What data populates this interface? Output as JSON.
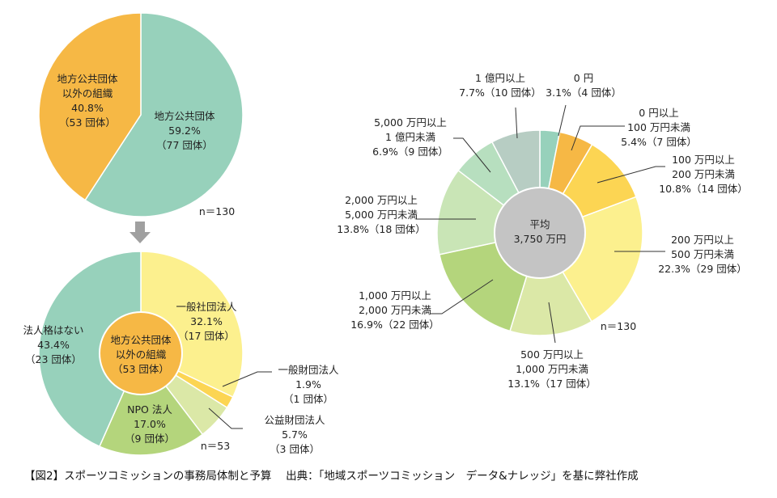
{
  "caption": "【図2】スポーツコミッションの事務局体制と予算　 出典：「地域スポーツコミッション　データ&ナレッジ」を基に弊社作成",
  "colors": {
    "teal": "#97d1bb",
    "orange": "#f6b845",
    "yellow_light": "#fcf08e",
    "yellow_mid": "#fcd553",
    "lime_pale": "#dbe8a7",
    "green_mid": "#b4d57c",
    "green_pale": "#c9e5b6",
    "mint_pale": "#b7dfbf",
    "gray_green": "#b7cdc3",
    "center_gray": "#c4c4c4",
    "center_orange": "#f6b845",
    "arrow": "#a0a0a0"
  },
  "chart_data": [
    {
      "type": "pie",
      "n_label": "n＝130",
      "slices": [
        {
          "name": "地方公共団体",
          "percent": 59.2,
          "count": 77,
          "lines": [
            "地方公共団体",
            "59.2%",
            "（77 団体）"
          ],
          "color": "#97d1bb"
        },
        {
          "name": "地方公共団体以外の組織",
          "percent": 40.8,
          "count": 53,
          "lines": [
            "地方公共団体",
            "以外の組織",
            "40.8%",
            "（53 団体）"
          ],
          "color": "#f6b845"
        }
      ]
    },
    {
      "type": "pie",
      "n_label": "n＝53",
      "center_lines": [
        "地方公共団体",
        "以外の組織",
        "（53 団体）"
      ],
      "slices": [
        {
          "name": "一般社団法人",
          "percent": 32.1,
          "count": 17,
          "lines": [
            "一般社団法人",
            "32.1%",
            "（17 団体）"
          ],
          "color": "#fcf08e"
        },
        {
          "name": "一般財団法人",
          "percent": 1.9,
          "count": 1,
          "lines": [
            "一般財団法人",
            "1.9%",
            "（1 団体）"
          ],
          "color": "#fcd553"
        },
        {
          "name": "公益財団法人",
          "percent": 5.7,
          "count": 3,
          "lines": [
            "公益財団法人",
            "5.7%",
            "（3 団体）"
          ],
          "color": "#dbe8a7"
        },
        {
          "name": "NPO 法人",
          "percent": 17.0,
          "count": 9,
          "lines": [
            "NPO 法人",
            "17.0%",
            "（9 団体）"
          ],
          "color": "#b4d57c"
        },
        {
          "name": "法人格はない",
          "percent": 43.4,
          "count": 23,
          "lines": [
            "法人格はない",
            "43.4%",
            "（23 団体）"
          ],
          "color": "#97d1bb"
        }
      ]
    },
    {
      "type": "pie",
      "n_label": "n＝130",
      "center_lines": [
        "平均",
        "3,750 万円"
      ],
      "slices": [
        {
          "name": "0 円",
          "percent": 3.1,
          "count": 4,
          "lines": [
            "0 円",
            "3.1%（4 団体）"
          ],
          "color": "#97d1bb"
        },
        {
          "name": "0 円以上 100 万円未満",
          "percent": 5.4,
          "count": 7,
          "lines": [
            "0 円以上",
            "100 万円未満",
            "5.4%（7 団体）"
          ],
          "color": "#f6b845"
        },
        {
          "name": "100 万円以上 200 万円未満",
          "percent": 10.8,
          "count": 14,
          "lines": [
            "100 万円以上",
            "200 万円未満",
            "10.8%（14 団体）"
          ],
          "color": "#fcd553"
        },
        {
          "name": "200 万円以上 500 万円未満",
          "percent": 22.3,
          "count": 29,
          "lines": [
            "200 万円以上",
            "500 万円未満",
            "22.3%（29 団体）"
          ],
          "color": "#fcf08e"
        },
        {
          "name": "500 万円以上 1,000 万円未満",
          "percent": 13.1,
          "count": 17,
          "lines": [
            "500 万円以上",
            "1,000 万円未満",
            "13.1%（17 団体）"
          ],
          "color": "#dbe8a7"
        },
        {
          "name": "1,000 万円以上 2,000 万円未満",
          "percent": 16.9,
          "count": 22,
          "lines": [
            "1,000 万円以上",
            "2,000 万円未満",
            "16.9%（22 団体）"
          ],
          "color": "#b4d57c"
        },
        {
          "name": "2,000 万円以上 5,000 万円未満",
          "percent": 13.8,
          "count": 18,
          "lines": [
            "2,000 万円以上",
            "5,000 万円未満",
            "13.8%（18 団体）"
          ],
          "color": "#c9e5b6"
        },
        {
          "name": "5,000 万円以上 1 億円未満",
          "percent": 6.9,
          "count": 9,
          "lines": [
            "5,000 万円以上",
            "1 億円未満",
            "6.9%（9 団体）"
          ],
          "color": "#b7dfbf"
        },
        {
          "name": "1 億円以上",
          "percent": 7.7,
          "count": 10,
          "lines": [
            "1 億円以上",
            "7.7%（10 団体）"
          ],
          "color": "#b7cdc3"
        }
      ]
    }
  ]
}
